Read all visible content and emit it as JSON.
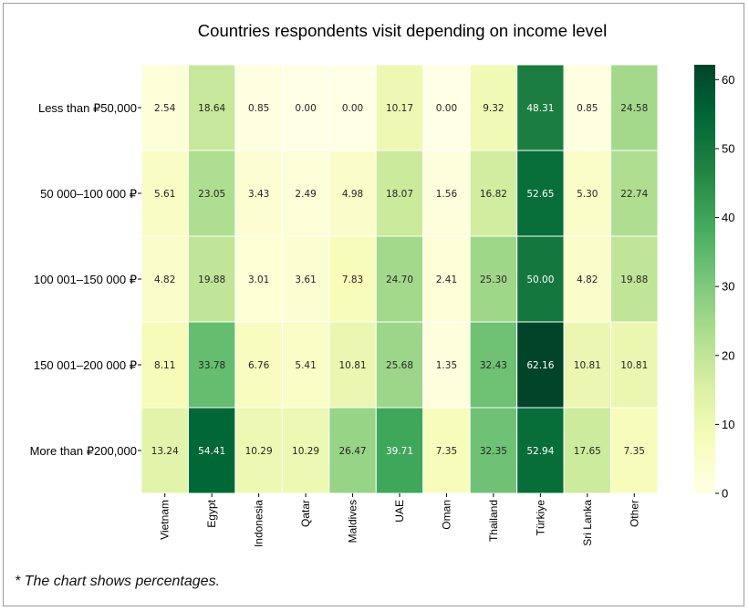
{
  "footnote": "* The chart shows percentages.",
  "chart_data": {
    "type": "heatmap",
    "title": "Countries respondents visit depending on income level",
    "xlabel": "",
    "ylabel": "",
    "columns": [
      "Vietnam",
      "Egypt",
      "Indonesia",
      "Qatar",
      "Maldives",
      "UAE",
      "Oman",
      "Thailand",
      "Türkiye",
      "Sri Lanka",
      "Other"
    ],
    "rows": [
      "Less than ₽50,000",
      "50 000–100 000 ₽",
      "100 001–150 000 ₽",
      "150 001–200 000 ₽",
      "More than ₽200,000"
    ],
    "values": [
      [
        2.54,
        18.64,
        0.85,
        0.0,
        0.0,
        10.17,
        0.0,
        9.32,
        48.31,
        0.85,
        24.58
      ],
      [
        5.61,
        23.05,
        3.43,
        2.49,
        4.98,
        18.07,
        1.56,
        16.82,
        52.65,
        5.3,
        22.74
      ],
      [
        4.82,
        19.88,
        3.01,
        3.61,
        7.83,
        24.7,
        2.41,
        25.3,
        50.0,
        4.82,
        19.88
      ],
      [
        8.11,
        33.78,
        6.76,
        5.41,
        10.81,
        25.68,
        1.35,
        32.43,
        62.16,
        10.81,
        10.81
      ],
      [
        13.24,
        54.41,
        10.29,
        10.29,
        26.47,
        39.71,
        7.35,
        32.35,
        52.94,
        17.65,
        7.35
      ]
    ],
    "value_labels": [
      [
        "2.54",
        "18.64",
        "0.85",
        "0.00",
        "0.00",
        "10.17",
        "0.00",
        "9.32",
        "48.31",
        "0.85",
        "24.58"
      ],
      [
        "5.61",
        "23.05",
        "3.43",
        "2.49",
        "4.98",
        "18.07",
        "1.56",
        "16.82",
        "52.65",
        "5.30",
        "22.74"
      ],
      [
        "4.82",
        "19.88",
        "3.01",
        "3.61",
        "7.83",
        "24.70",
        "2.41",
        "25.30",
        "50.00",
        "4.82",
        "19.88"
      ],
      [
        "8.11",
        "33.78",
        "6.76",
        "5.41",
        "10.81",
        "25.68",
        "1.35",
        "32.43",
        "62.16",
        "10.81",
        "10.81"
      ],
      [
        "13.24",
        "54.41",
        "10.29",
        "10.29",
        "26.47",
        "39.71",
        "7.35",
        "32.35",
        "52.94",
        "17.65",
        "7.35"
      ]
    ],
    "colorbar": {
      "min": 0,
      "max": 62.16,
      "ticks": [
        0,
        10,
        20,
        30,
        40,
        50,
        60
      ],
      "tick_labels": [
        "0",
        "10",
        "20",
        "30",
        "40",
        "50",
        "60"
      ],
      "colormap": "YlGn"
    },
    "grid": false,
    "legend": "colorbar-right"
  }
}
